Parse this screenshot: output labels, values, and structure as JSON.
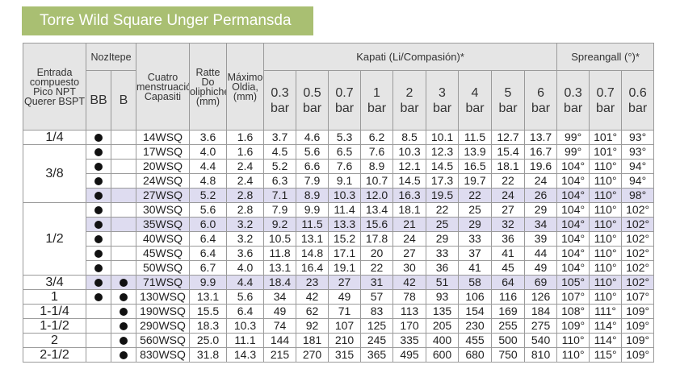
{
  "title": "Torre Wild Square Unger Permansda",
  "headers": {
    "inlet": "Entrada compuesto Pico NPT Querer BSPT",
    "nozzle_group": "NozItepe",
    "nozzle_bb": "BB",
    "nozzle_b": "B",
    "capacity_label": "Cuatro menstruación Capasiti",
    "orifice": "Ratte Do oliphichedia, (mm)",
    "max_free": "Máximo Oldia, (mm)",
    "capacity_group": "Kapati (Li/Compasión)*",
    "spray_group": "Spreangall (°)*",
    "bar_unit": "bar",
    "capacity_pressures": [
      "0.3",
      "0.5",
      "0.7",
      "1",
      "2",
      "3",
      "4",
      "5",
      "6"
    ],
    "spray_pressures": [
      "0.3",
      "0.7",
      "0.6"
    ]
  },
  "rows": [
    {
      "inlet": "1/4",
      "bb": true,
      "b": false,
      "model": "14WSQ",
      "orifice": "3.6",
      "max": "1.6",
      "cap": [
        "3.7",
        "4.6",
        "5.3",
        "6.2",
        "8.5",
        "10.1",
        "11.5",
        "12.7",
        "13.7"
      ],
      "spray": [
        "99°",
        "101°",
        "93°"
      ],
      "highlight": false
    },
    {
      "inlet": "3/8",
      "bb": true,
      "b": false,
      "model": "17WSQ",
      "orifice": "4.0",
      "max": "1.6",
      "cap": [
        "4.5",
        "5.6",
        "6.5",
        "7.6",
        "10.3",
        "12.3",
        "13.9",
        "15.4",
        "16.7"
      ],
      "spray": [
        "99°",
        "101°",
        "93°"
      ],
      "highlight": false
    },
    {
      "inlet": "",
      "bb": true,
      "b": false,
      "model": "20WSQ",
      "orifice": "4.4",
      "max": "2.4",
      "cap": [
        "5.2",
        "6.6",
        "7.6",
        "8.9",
        "12.1",
        "14.5",
        "16.5",
        "18.1",
        "19.6"
      ],
      "spray": [
        "104°",
        "110°",
        "94°"
      ],
      "highlight": false
    },
    {
      "inlet": "",
      "bb": true,
      "b": false,
      "model": "24WSQ",
      "orifice": "4.8",
      "max": "2.4",
      "cap": [
        "6.3",
        "7.9",
        "9.1",
        "10.7",
        "14.5",
        "17.3",
        "19.7",
        "22",
        "24"
      ],
      "spray": [
        "104°",
        "110°",
        "94°"
      ],
      "highlight": false
    },
    {
      "inlet": "",
      "bb": true,
      "b": false,
      "model": "27WSQ",
      "orifice": "5.2",
      "max": "2.8",
      "cap": [
        "7.1",
        "8.9",
        "10.3",
        "12.0",
        "16.3",
        "19.5",
        "22",
        "24",
        "26"
      ],
      "spray": [
        "104°",
        "110°",
        "98°"
      ],
      "highlight": true
    },
    {
      "inlet": "1/2",
      "bb": true,
      "b": false,
      "model": "30WSQ",
      "orifice": "5.6",
      "max": "2.8",
      "cap": [
        "7.9",
        "9.9",
        "11.4",
        "13.4",
        "18.1",
        "22",
        "25",
        "27",
        "29"
      ],
      "spray": [
        "104°",
        "110°",
        "102°"
      ],
      "highlight": false
    },
    {
      "inlet": "",
      "bb": true,
      "b": false,
      "model": "35WSQ",
      "orifice": "6.0",
      "max": "3.2",
      "cap": [
        "9.2",
        "11.5",
        "13.3",
        "15.6",
        "21",
        "25",
        "29",
        "32",
        "34"
      ],
      "spray": [
        "104°",
        "110°",
        "102°"
      ],
      "highlight": true
    },
    {
      "inlet": "",
      "bb": true,
      "b": false,
      "model": "40WSQ",
      "orifice": "6.4",
      "max": "3.2",
      "cap": [
        "10.5",
        "13.1",
        "15.2",
        "17.8",
        "24",
        "29",
        "33",
        "36",
        "39"
      ],
      "spray": [
        "104°",
        "110°",
        "102°"
      ],
      "highlight": false
    },
    {
      "inlet": "",
      "bb": true,
      "b": false,
      "model": "45WSQ",
      "orifice": "6.4",
      "max": "3.6",
      "cap": [
        "11.8",
        "14.8",
        "17.1",
        "20",
        "27",
        "33",
        "37",
        "41",
        "44"
      ],
      "spray": [
        "104°",
        "110°",
        "102°"
      ],
      "highlight": false
    },
    {
      "inlet": "",
      "bb": true,
      "b": false,
      "model": "50WSQ",
      "orifice": "6.7",
      "max": "4.0",
      "cap": [
        "13.1",
        "16.4",
        "19.1",
        "22",
        "30",
        "36",
        "41",
        "45",
        "49"
      ],
      "spray": [
        "104°",
        "110°",
        "102°"
      ],
      "highlight": false
    },
    {
      "inlet": "3/4",
      "bb": true,
      "b": true,
      "model": "71WSQ",
      "orifice": "9.9",
      "max": "4.4",
      "cap": [
        "18.4",
        "23",
        "27",
        "31",
        "42",
        "51",
        "58",
        "64",
        "69"
      ],
      "spray": [
        "105°",
        "110°",
        "102°"
      ],
      "highlight": true
    },
    {
      "inlet": "1",
      "bb": true,
      "b": true,
      "model": "130WSQ",
      "orifice": "13.1",
      "max": "5.6",
      "cap": [
        "34",
        "42",
        "49",
        "57",
        "78",
        "93",
        "106",
        "116",
        "126"
      ],
      "spray": [
        "107°",
        "110°",
        "107°"
      ],
      "highlight": false
    },
    {
      "inlet": "1-1/4",
      "bb": false,
      "b": true,
      "model": "190WSQ",
      "orifice": "15.5",
      "max": "6.4",
      "cap": [
        "49",
        "62",
        "71",
        "83",
        "113",
        "135",
        "154",
        "169",
        "184"
      ],
      "spray": [
        "108°",
        "111°",
        "109°"
      ],
      "highlight": false
    },
    {
      "inlet": "1-1/2",
      "bb": false,
      "b": true,
      "model": "290WSQ",
      "orifice": "18.3",
      "max": "10.3",
      "cap": [
        "74",
        "92",
        "107",
        "125",
        "170",
        "205",
        "230",
        "255",
        "275"
      ],
      "spray": [
        "109°",
        "114°",
        "109°"
      ],
      "highlight": false
    },
    {
      "inlet": "2",
      "bb": false,
      "b": true,
      "model": "560WSQ",
      "orifice": "25.0",
      "max": "11.1",
      "cap": [
        "144",
        "181",
        "210",
        "245",
        "335",
        "400",
        "455",
        "500",
        "540"
      ],
      "spray": [
        "110°",
        "114°",
        "109°"
      ],
      "highlight": false
    },
    {
      "inlet": "2-1/2",
      "bb": false,
      "b": true,
      "model": "830WSQ",
      "orifice": "31.8",
      "max": "14.3",
      "cap": [
        "215",
        "270",
        "315",
        "365",
        "495",
        "600",
        "680",
        "750",
        "810"
      ],
      "spray": [
        "110°",
        "115°",
        "109°"
      ],
      "highlight": false
    }
  ]
}
